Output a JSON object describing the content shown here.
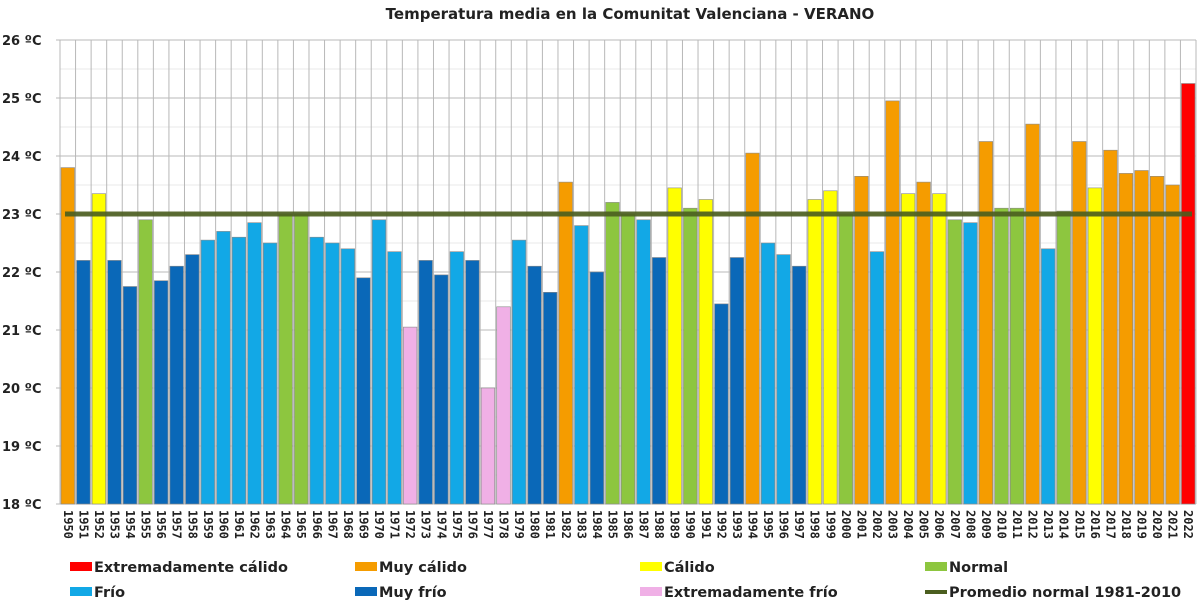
{
  "chart_data": {
    "type": "bar",
    "title": "Temperatura media en la Comunitat Valenciana  - VERANO",
    "xlabel": "",
    "ylabel": "",
    "ylim": [
      18,
      26
    ],
    "yticks": [
      "18 ºC",
      "19 ºC",
      "20 ºC",
      "21 ºC",
      "22 ºC",
      "23 ºC",
      "24 ºC",
      "25 ºC",
      "26 ºC"
    ],
    "ytick_values": [
      18,
      19,
      20,
      21,
      22,
      23,
      24,
      25,
      26
    ],
    "grid": true,
    "legend_position": "bottom",
    "reference_line": {
      "name": "Promedio normal 1981-2010",
      "value": 23.0,
      "color": "#4b5e1f"
    },
    "categories_legend": {
      "EC": {
        "name": "Extremadamente cálido",
        "color": "#ff0000"
      },
      "MC": {
        "name": "Muy cálido",
        "color": "#f59c00"
      },
      "C": {
        "name": "Cálido",
        "color": "#ffff00"
      },
      "N": {
        "name": "Normal",
        "color": "#8dc63f"
      },
      "F": {
        "name": "Frío",
        "color": "#12a8e6"
      },
      "MF": {
        "name": "Muy frío",
        "color": "#0a68b8"
      },
      "EF": {
        "name": "Extremadamente frío",
        "color": "#f0b0e6"
      }
    },
    "legend": [
      {
        "key": "EC",
        "label": "Extremadamente cálido"
      },
      {
        "key": "MC",
        "label": "Muy cálido"
      },
      {
        "key": "C",
        "label": "Cálido"
      },
      {
        "key": "N",
        "label": "Normal"
      },
      {
        "key": "F",
        "label": "Frío"
      },
      {
        "key": "MF",
        "label": "Muy frío"
      },
      {
        "key": "EF",
        "label": "Extremadamente frío"
      },
      {
        "key": "line",
        "label": "Promedio normal 1981-2010"
      }
    ],
    "categories": [
      "1950",
      "1951",
      "1952",
      "1953",
      "1954",
      "1955",
      "1956",
      "1957",
      "1958",
      "1959",
      "1960",
      "1961",
      "1962",
      "1963",
      "1964",
      "1965",
      "1966",
      "1967",
      "1968",
      "1969",
      "1970",
      "1971",
      "1972",
      "1973",
      "1974",
      "1975",
      "1976",
      "1977",
      "1978",
      "1979",
      "1980",
      "1981",
      "1982",
      "1983",
      "1984",
      "1985",
      "1986",
      "1987",
      "1988",
      "1989",
      "1990",
      "1991",
      "1992",
      "1993",
      "1994",
      "1995",
      "1996",
      "1997",
      "1998",
      "1999",
      "2000",
      "2001",
      "2002",
      "2003",
      "2004",
      "2005",
      "2006",
      "2007",
      "2008",
      "2009",
      "2010",
      "2011",
      "2012",
      "2013",
      "2014",
      "2015",
      "2016",
      "2017",
      "2018",
      "2019",
      "2020",
      "2021",
      "2022"
    ],
    "values": [
      23.8,
      22.2,
      23.35,
      22.2,
      21.75,
      22.9,
      21.85,
      22.1,
      22.3,
      22.55,
      22.7,
      22.6,
      22.85,
      22.5,
      23.0,
      23.0,
      22.6,
      22.5,
      22.4,
      21.9,
      22.9,
      22.35,
      21.05,
      22.2,
      21.95,
      22.35,
      22.2,
      20.0,
      21.4,
      22.55,
      22.1,
      21.65,
      23.55,
      22.8,
      22.0,
      23.2,
      23.0,
      22.9,
      22.25,
      23.45,
      23.1,
      23.25,
      21.45,
      22.25,
      24.05,
      22.5,
      22.3,
      22.1,
      23.25,
      23.4,
      23.0,
      23.65,
      22.35,
      24.95,
      23.35,
      23.55,
      23.35,
      22.9,
      22.85,
      24.25,
      23.1,
      23.1,
      24.55,
      22.4,
      23.05,
      24.25,
      23.45,
      24.1,
      23.7,
      23.75,
      23.65,
      23.5,
      25.25
    ],
    "classes": [
      "MC",
      "MF",
      "C",
      "MF",
      "MF",
      "N",
      "MF",
      "MF",
      "MF",
      "F",
      "F",
      "F",
      "F",
      "F",
      "N",
      "N",
      "F",
      "F",
      "F",
      "MF",
      "F",
      "F",
      "EF",
      "MF",
      "MF",
      "F",
      "MF",
      "EF",
      "EF",
      "F",
      "MF",
      "MF",
      "MC",
      "F",
      "MF",
      "N",
      "N",
      "F",
      "MF",
      "C",
      "N",
      "C",
      "MF",
      "MF",
      "MC",
      "F",
      "F",
      "MF",
      "C",
      "C",
      "N",
      "MC",
      "F",
      "MC",
      "C",
      "MC",
      "C",
      "N",
      "F",
      "MC",
      "N",
      "N",
      "MC",
      "F",
      "N",
      "MC",
      "C",
      "MC",
      "MC",
      "MC",
      "MC",
      "MC",
      "EC"
    ]
  }
}
